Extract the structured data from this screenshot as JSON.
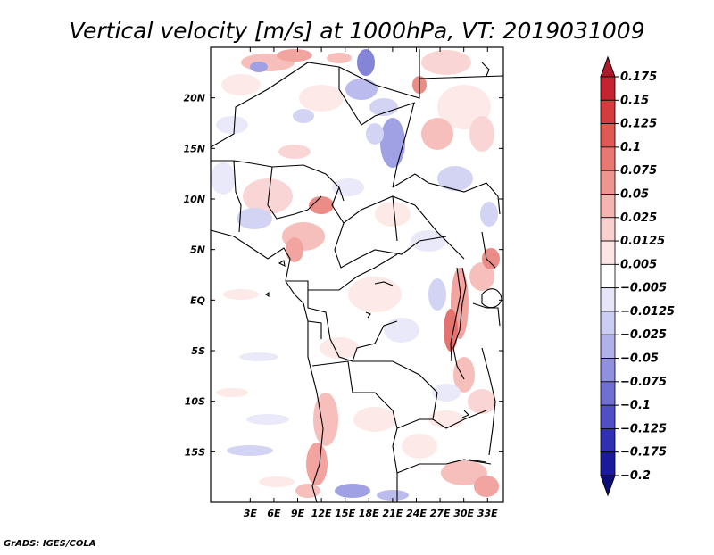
{
  "title": "Vertical velocity [m/s] at 1000hPa, VT: 2019031009",
  "credit": "GrADS: IGES/COLA",
  "map": {
    "lon_range": [
      -2,
      35
    ],
    "lat_range": [
      -20,
      25
    ],
    "x_ticks": [
      "3E",
      "6E",
      "9E",
      "12E",
      "15E",
      "18E",
      "21E",
      "24E",
      "27E",
      "30E",
      "33E"
    ],
    "y_ticks": [
      "20N",
      "15N",
      "10N",
      "5N",
      "EQ",
      "5S",
      "10S",
      "15S"
    ]
  },
  "colorbar": {
    "labels": [
      "0.175",
      "0.15",
      "0.125",
      "0.1",
      "0.075",
      "0.05",
      "0.025",
      "0.0125",
      "0.005",
      "−0.005",
      "−0.0125",
      "−0.025",
      "−0.05",
      "−0.075",
      "−0.1",
      "−0.125",
      "−0.175",
      "−0.2"
    ],
    "colors": [
      "#b2182b",
      "#c3242f",
      "#d33d3d",
      "#e05a55",
      "#e87872",
      "#ef9590",
      "#f5b4b0",
      "#f9d0ce",
      "#fce6e5",
      "#ffffff",
      "#e6e6f8",
      "#cccdf2",
      "#b0b0ea",
      "#9090e0",
      "#7070d2",
      "#5050c4",
      "#3030b0",
      "#1a1a9a",
      "#0d0d7a"
    ]
  }
}
